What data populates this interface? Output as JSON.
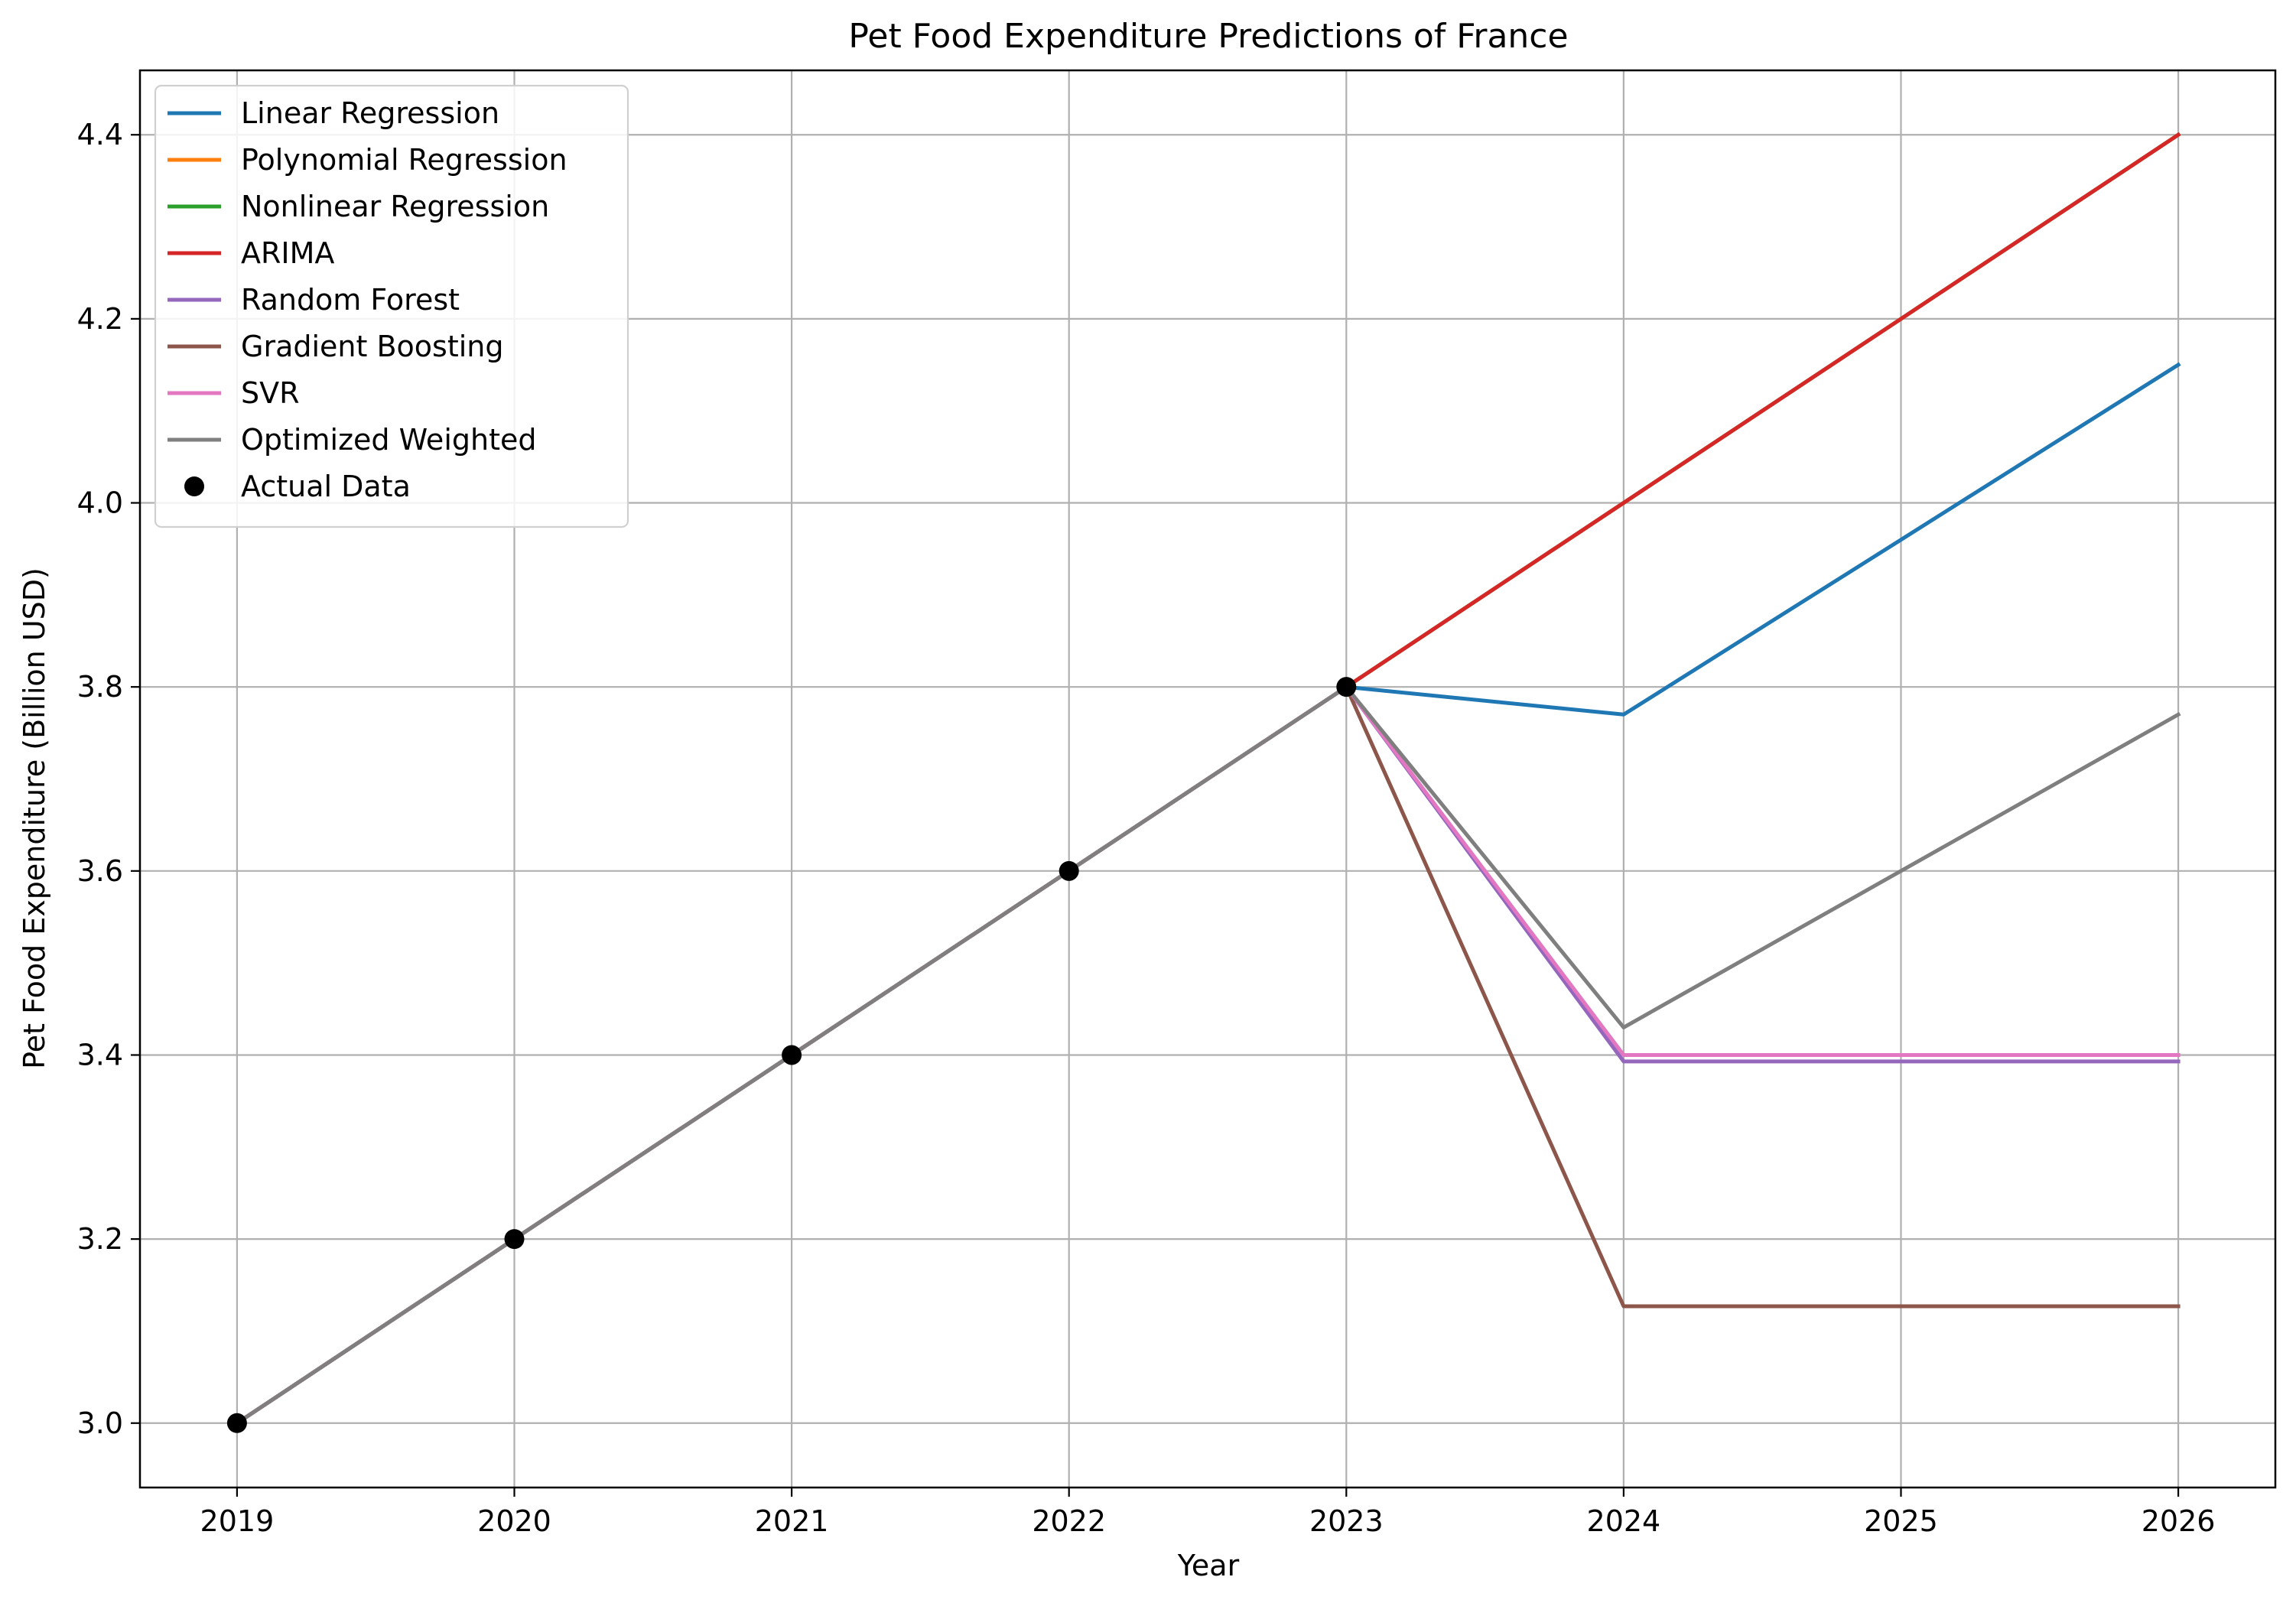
{
  "chart_data": {
    "type": "line",
    "title": "Pet Food Expenditure Predictions of France",
    "xlabel": "Year",
    "ylabel": "Pet Food Expenditure (Billion USD)",
    "x": [
      2019,
      2020,
      2021,
      2022,
      2023,
      2024,
      2025,
      2026
    ],
    "xlim": [
      2018.65,
      2026.35
    ],
    "ylim": [
      2.93,
      4.47
    ],
    "yticks": [
      "3.0",
      "3.2",
      "3.4",
      "3.6",
      "3.8",
      "4.0",
      "4.2",
      "4.4"
    ],
    "ytick_values": [
      3.0,
      3.2,
      3.4,
      3.6,
      3.8,
      4.0,
      4.2,
      4.4
    ],
    "grid": true,
    "legend_position": "upper-left",
    "series": [
      {
        "name": "Linear Regression",
        "color": "#1f77b4",
        "x": [
          2019,
          2020,
          2021,
          2022,
          2023,
          2024,
          2025,
          2026
        ],
        "values": [
          3.0,
          3.2,
          3.4,
          3.6,
          3.8,
          3.77,
          3.96,
          4.15
        ]
      },
      {
        "name": "Polynomial Regression",
        "color": "#ff7f0e",
        "x": [
          2019,
          2020,
          2021,
          2022,
          2023,
          2024,
          2025,
          2026
        ],
        "values": [
          3.0,
          3.2,
          3.4,
          3.6,
          3.8,
          4.0,
          4.2,
          4.4
        ]
      },
      {
        "name": "Nonlinear Regression",
        "color": "#2ca02c",
        "x": [
          2019,
          2020,
          2021,
          2022,
          2023,
          2024,
          2025,
          2026
        ],
        "values": [
          3.0,
          3.2,
          3.4,
          3.6,
          3.8,
          4.0,
          4.2,
          4.4
        ]
      },
      {
        "name": "ARIMA",
        "color": "#d62728",
        "x": [
          2019,
          2020,
          2021,
          2022,
          2023,
          2024,
          2025,
          2026
        ],
        "values": [
          3.0,
          3.2,
          3.4,
          3.6,
          3.8,
          4.0,
          4.2,
          4.4
        ]
      },
      {
        "name": "Random Forest",
        "color": "#9467bd",
        "x": [
          2019,
          2020,
          2021,
          2022,
          2023,
          2024,
          2025,
          2026
        ],
        "values": [
          3.0,
          3.2,
          3.4,
          3.6,
          3.8,
          3.393,
          3.393,
          3.393
        ]
      },
      {
        "name": "Gradient Boosting",
        "color": "#8c564b",
        "x": [
          2019,
          2020,
          2021,
          2022,
          2023,
          2024,
          2025,
          2026
        ],
        "values": [
          3.0,
          3.2,
          3.4,
          3.6,
          3.8,
          3.127,
          3.127,
          3.127
        ]
      },
      {
        "name": "SVR",
        "color": "#e377c2",
        "x": [
          2019,
          2020,
          2021,
          2022,
          2023,
          2024,
          2025,
          2026
        ],
        "values": [
          3.0,
          3.2,
          3.4,
          3.6,
          3.8,
          3.4,
          3.4,
          3.4
        ]
      },
      {
        "name": "Optimized Weighted",
        "color": "#7f7f7f",
        "x": [
          2019,
          2020,
          2021,
          2022,
          2023,
          2024,
          2025,
          2026
        ],
        "values": [
          3.0,
          3.2,
          3.4,
          3.6,
          3.8,
          3.43,
          3.6,
          3.77
        ]
      }
    ],
    "actual": {
      "name": "Actual Data",
      "color": "#000000",
      "x": [
        2019,
        2020,
        2021,
        2022,
        2023
      ],
      "values": [
        3.0,
        3.2,
        3.4,
        3.6,
        3.8
      ]
    }
  }
}
